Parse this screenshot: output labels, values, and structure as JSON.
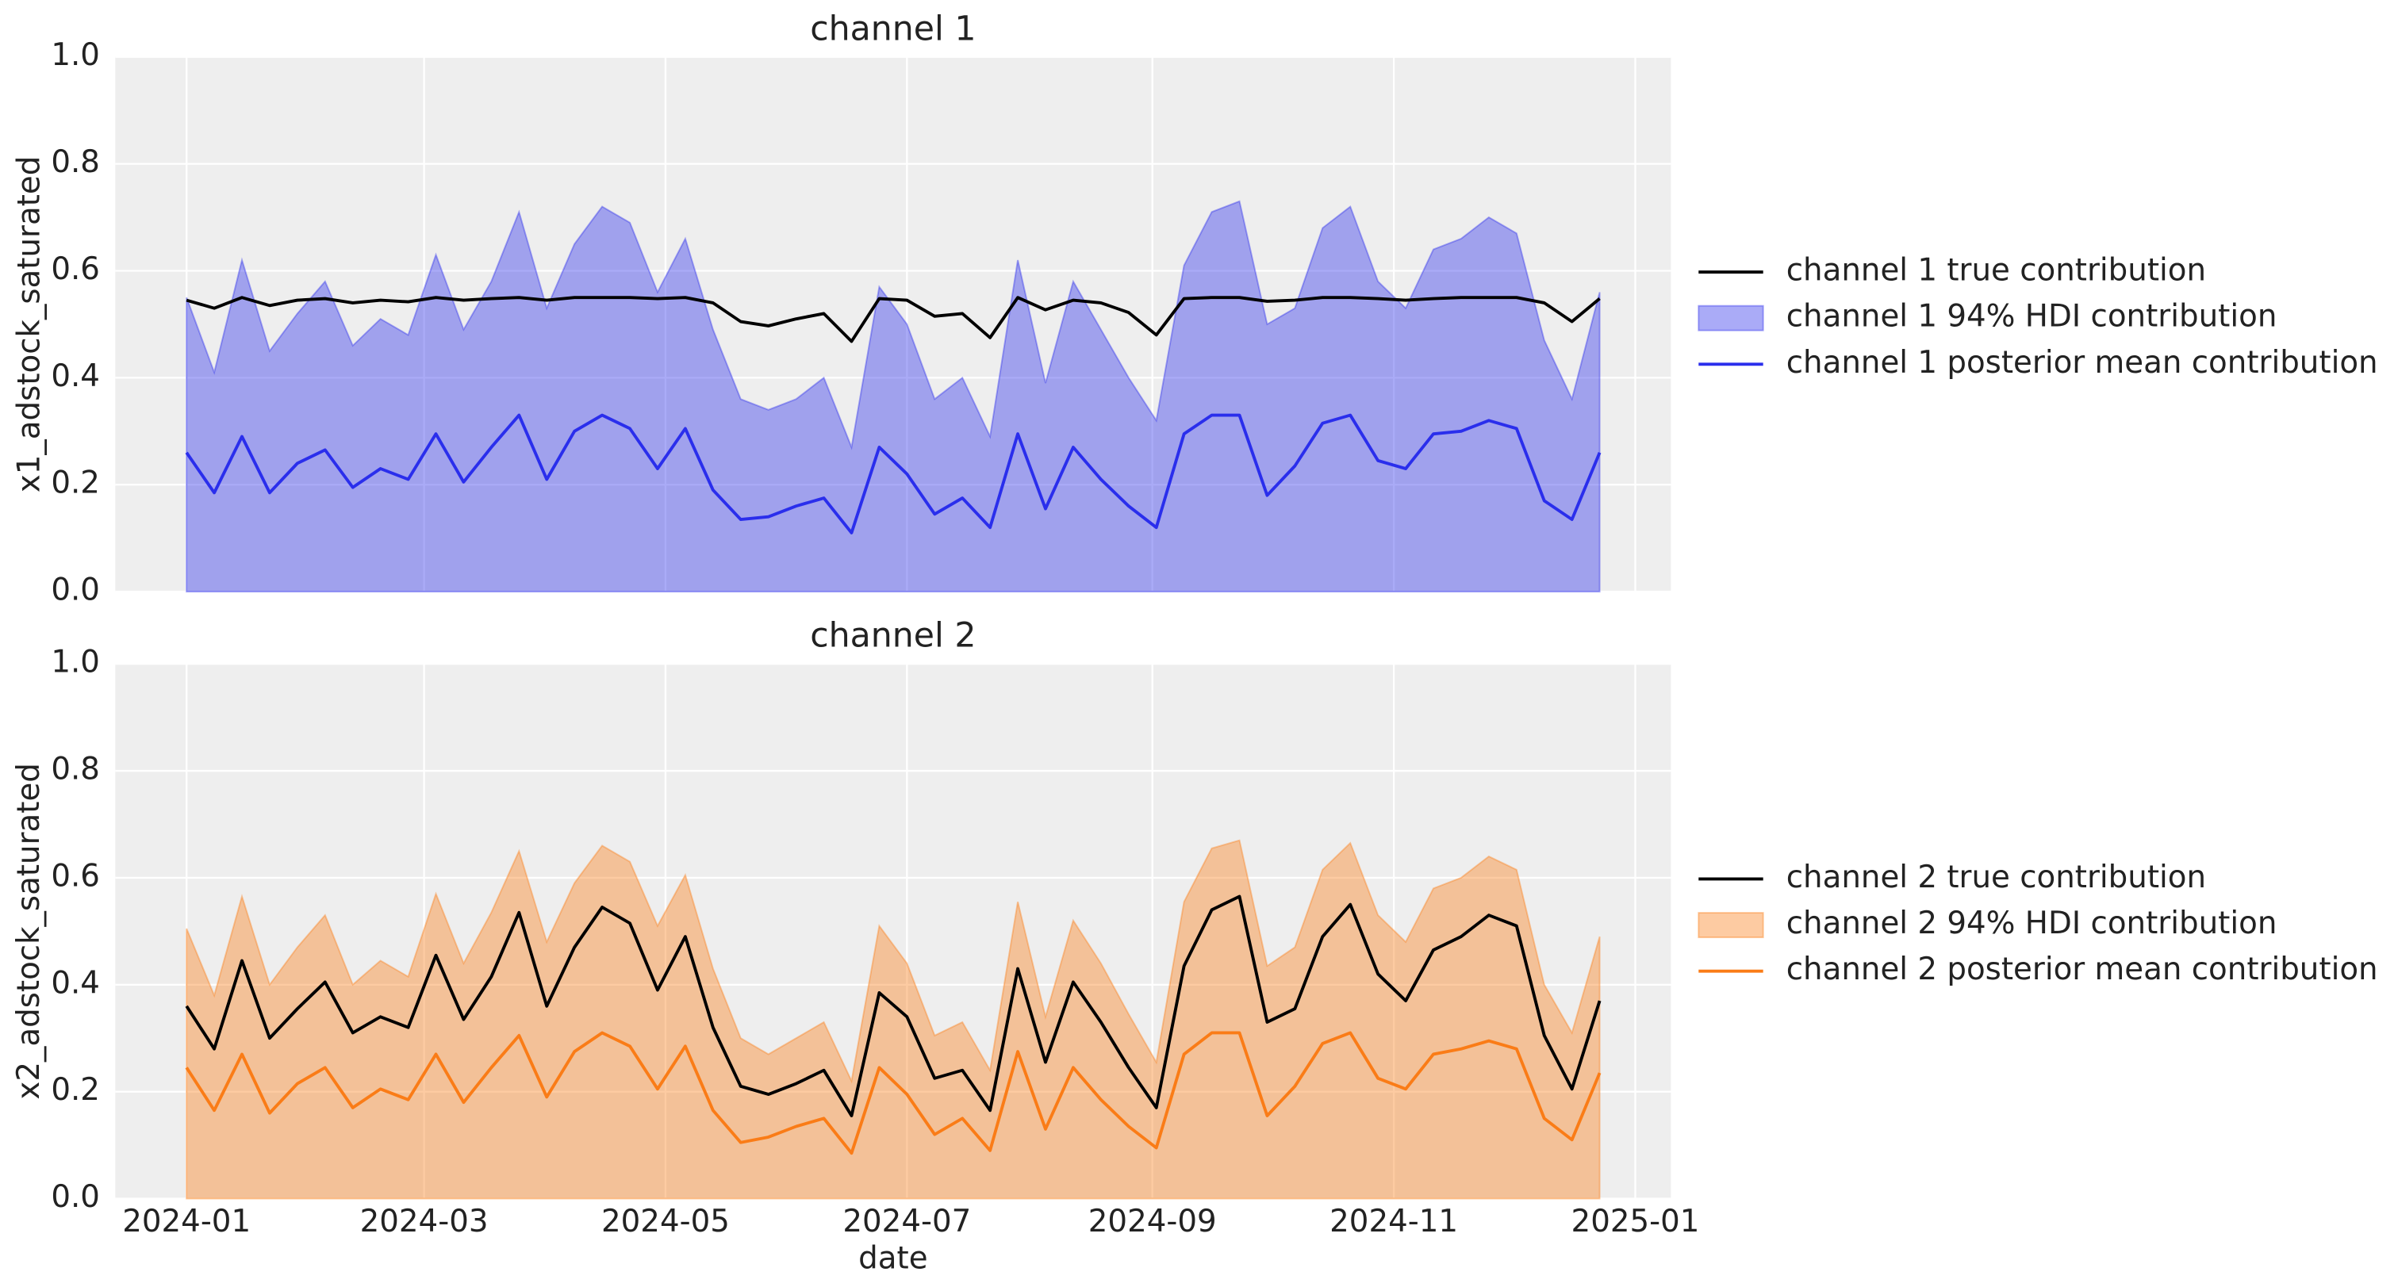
{
  "chart_data": [
    {
      "type": "line",
      "title": "channel 1",
      "ylabel": "x1_adstock_saturated",
      "x": [
        0,
        7,
        14,
        21,
        28,
        35,
        42,
        49,
        56,
        63,
        70,
        77,
        84,
        91,
        98,
        105,
        112,
        119,
        126,
        133,
        140,
        147,
        154,
        161,
        168,
        175,
        182,
        189,
        196,
        203,
        210,
        217,
        224,
        231,
        238,
        245,
        252,
        259,
        266,
        273,
        280,
        287,
        294,
        301,
        308,
        315,
        322,
        329,
        336,
        343,
        350,
        357
      ],
      "xlim": [
        -18,
        375
      ],
      "xticks": [
        0,
        60,
        121,
        182,
        244,
        305,
        366
      ],
      "ylim": [
        0,
        1
      ],
      "yticks": [
        {
          "value": 0,
          "label": "0.0"
        },
        {
          "value": 0.2,
          "label": "0.2"
        },
        {
          "value": 0.4,
          "label": "0.4"
        },
        {
          "value": 0.6,
          "label": "0.6"
        },
        {
          "value": 0.8,
          "label": "0.8"
        },
        {
          "value": 1,
          "label": "1.0"
        }
      ],
      "grid": true,
      "legend": "right",
      "series": [
        {
          "name": "channel 1 true contribution",
          "color": "#000000",
          "kind": "line",
          "values": [
            0.545,
            0.53,
            0.55,
            0.535,
            0.545,
            0.548,
            0.54,
            0.545,
            0.542,
            0.55,
            0.545,
            0.548,
            0.55,
            0.545,
            0.55,
            0.55,
            0.55,
            0.548,
            0.55,
            0.54,
            0.505,
            0.497,
            0.51,
            0.52,
            0.468,
            0.548,
            0.545,
            0.515,
            0.52,
            0.475,
            0.55,
            0.527,
            0.545,
            0.54,
            0.522,
            0.48,
            0.548,
            0.55,
            0.55,
            0.543,
            0.545,
            0.55,
            0.55,
            0.548,
            0.545,
            0.548,
            0.55,
            0.55,
            0.55,
            0.54,
            0.505,
            0.548
          ]
        },
        {
          "name": "channel 1 94% HDI contribution",
          "color": "#2a2eec",
          "kind": "area",
          "values": [
            0.55,
            0.41,
            0.62,
            0.45,
            0.52,
            0.58,
            0.46,
            0.51,
            0.48,
            0.63,
            0.49,
            0.58,
            0.71,
            0.53,
            0.65,
            0.72,
            0.69,
            0.56,
            0.66,
            0.49,
            0.36,
            0.34,
            0.36,
            0.4,
            0.27,
            0.57,
            0.5,
            0.36,
            0.4,
            0.29,
            0.62,
            0.39,
            0.58,
            0.49,
            0.4,
            0.32,
            0.61,
            0.71,
            0.73,
            0.5,
            0.53,
            0.68,
            0.72,
            0.58,
            0.53,
            0.64,
            0.66,
            0.7,
            0.67,
            0.47,
            0.36,
            0.56
          ]
        },
        {
          "name": "channel 1 posterior mean contribution",
          "color": "#2a2eec",
          "kind": "line",
          "values": [
            0.26,
            0.185,
            0.29,
            0.185,
            0.24,
            0.265,
            0.195,
            0.23,
            0.21,
            0.295,
            0.205,
            0.27,
            0.33,
            0.21,
            0.3,
            0.33,
            0.305,
            0.23,
            0.305,
            0.19,
            0.135,
            0.14,
            0.16,
            0.175,
            0.11,
            0.27,
            0.22,
            0.145,
            0.175,
            0.12,
            0.295,
            0.155,
            0.27,
            0.21,
            0.16,
            0.12,
            0.295,
            0.33,
            0.33,
            0.18,
            0.235,
            0.315,
            0.33,
            0.245,
            0.23,
            0.295,
            0.3,
            0.32,
            0.305,
            0.17,
            0.135,
            0.26
          ]
        }
      ]
    },
    {
      "type": "line",
      "title": "channel 2",
      "ylabel": "x2_adstock_saturated",
      "xlabel": "date",
      "x": [
        0,
        7,
        14,
        21,
        28,
        35,
        42,
        49,
        56,
        63,
        70,
        77,
        84,
        91,
        98,
        105,
        112,
        119,
        126,
        133,
        140,
        147,
        154,
        161,
        168,
        175,
        182,
        189,
        196,
        203,
        210,
        217,
        224,
        231,
        238,
        245,
        252,
        259,
        266,
        273,
        280,
        287,
        294,
        301,
        308,
        315,
        322,
        329,
        336,
        343,
        350,
        357
      ],
      "xlim": [
        -18,
        375
      ],
      "xticks": [
        {
          "value": 0,
          "label": "2024-01"
        },
        {
          "value": 60,
          "label": "2024-03"
        },
        {
          "value": 121,
          "label": "2024-05"
        },
        {
          "value": 182,
          "label": "2024-07"
        },
        {
          "value": 244,
          "label": "2024-09"
        },
        {
          "value": 305,
          "label": "2024-11"
        },
        {
          "value": 366,
          "label": "2025-01"
        }
      ],
      "ylim": [
        0,
        1
      ],
      "yticks": [
        {
          "value": 0,
          "label": "0.0"
        },
        {
          "value": 0.2,
          "label": "0.2"
        },
        {
          "value": 0.4,
          "label": "0.4"
        },
        {
          "value": 0.6,
          "label": "0.6"
        },
        {
          "value": 0.8,
          "label": "0.8"
        },
        {
          "value": 1,
          "label": "1.0"
        }
      ],
      "grid": true,
      "legend": "right",
      "series": [
        {
          "name": "channel 2 true contribution",
          "color": "#000000",
          "kind": "line",
          "values": [
            0.36,
            0.28,
            0.445,
            0.3,
            0.355,
            0.405,
            0.31,
            0.34,
            0.32,
            0.455,
            0.335,
            0.415,
            0.535,
            0.36,
            0.47,
            0.545,
            0.515,
            0.39,
            0.49,
            0.32,
            0.21,
            0.195,
            0.215,
            0.24,
            0.155,
            0.385,
            0.34,
            0.225,
            0.24,
            0.165,
            0.43,
            0.255,
            0.405,
            0.33,
            0.245,
            0.17,
            0.435,
            0.54,
            0.565,
            0.33,
            0.355,
            0.49,
            0.55,
            0.42,
            0.37,
            0.465,
            0.49,
            0.53,
            0.51,
            0.305,
            0.205,
            0.37
          ]
        },
        {
          "name": "channel 2 94% HDI contribution",
          "color": "#fa7c17",
          "kind": "area",
          "values": [
            0.505,
            0.38,
            0.565,
            0.4,
            0.47,
            0.53,
            0.4,
            0.445,
            0.415,
            0.57,
            0.44,
            0.535,
            0.65,
            0.48,
            0.59,
            0.66,
            0.63,
            0.51,
            0.605,
            0.43,
            0.3,
            0.27,
            0.3,
            0.33,
            0.22,
            0.51,
            0.44,
            0.305,
            0.33,
            0.24,
            0.555,
            0.34,
            0.52,
            0.44,
            0.345,
            0.255,
            0.555,
            0.655,
            0.67,
            0.435,
            0.47,
            0.615,
            0.665,
            0.53,
            0.48,
            0.58,
            0.6,
            0.64,
            0.615,
            0.4,
            0.31,
            0.49
          ]
        },
        {
          "name": "channel 2 posterior mean contribution",
          "color": "#fa7c17",
          "kind": "line",
          "values": [
            0.245,
            0.165,
            0.27,
            0.16,
            0.215,
            0.245,
            0.17,
            0.205,
            0.185,
            0.27,
            0.18,
            0.245,
            0.305,
            0.19,
            0.275,
            0.31,
            0.285,
            0.205,
            0.285,
            0.165,
            0.105,
            0.115,
            0.135,
            0.15,
            0.085,
            0.245,
            0.195,
            0.12,
            0.15,
            0.09,
            0.275,
            0.13,
            0.245,
            0.185,
            0.135,
            0.095,
            0.27,
            0.31,
            0.31,
            0.155,
            0.21,
            0.29,
            0.31,
            0.225,
            0.205,
            0.27,
            0.28,
            0.295,
            0.28,
            0.15,
            0.11,
            0.235
          ]
        }
      ]
    }
  ]
}
